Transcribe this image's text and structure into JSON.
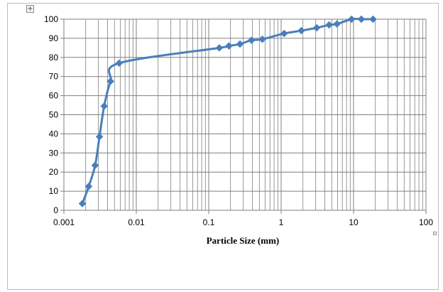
{
  "chart_data": {
    "type": "line",
    "title": "",
    "xlabel": "Particle Size (mm)",
    "ylabel": "",
    "x_scale": "log",
    "xlim": [
      0.001,
      100
    ],
    "ylim": [
      0,
      100
    ],
    "grid": true,
    "legend": "none",
    "x_ticks": [
      "0.001",
      "0.01",
      "0.1",
      "1",
      "10",
      "100"
    ],
    "y_ticks": [
      "0",
      "10",
      "20",
      "30",
      "40",
      "50",
      "60",
      "70",
      "80",
      "90",
      "100"
    ],
    "series": [
      {
        "color": "#4a7ebb",
        "marker": "diamond",
        "x": [
          0.0018,
          0.0022,
          0.0027,
          0.0031,
          0.0036,
          0.0044,
          0.0058,
          0.14,
          0.19,
          0.27,
          0.39,
          0.55,
          1.1,
          1.9,
          3.1,
          4.6,
          5.9,
          9.4,
          12.8,
          18.6
        ],
        "y": [
          3.5,
          12.5,
          23.5,
          38.5,
          54.5,
          67.5,
          77,
          85,
          86,
          87,
          89,
          89.5,
          92.5,
          94,
          95.5,
          97,
          97.5,
          100,
          100,
          100
        ]
      }
    ]
  },
  "colors": {
    "series": "#4a7ebb",
    "grid": "#7f7f7f",
    "axis": "#7f7f7f"
  },
  "ui": {
    "move_handle_glyph": "+"
  }
}
